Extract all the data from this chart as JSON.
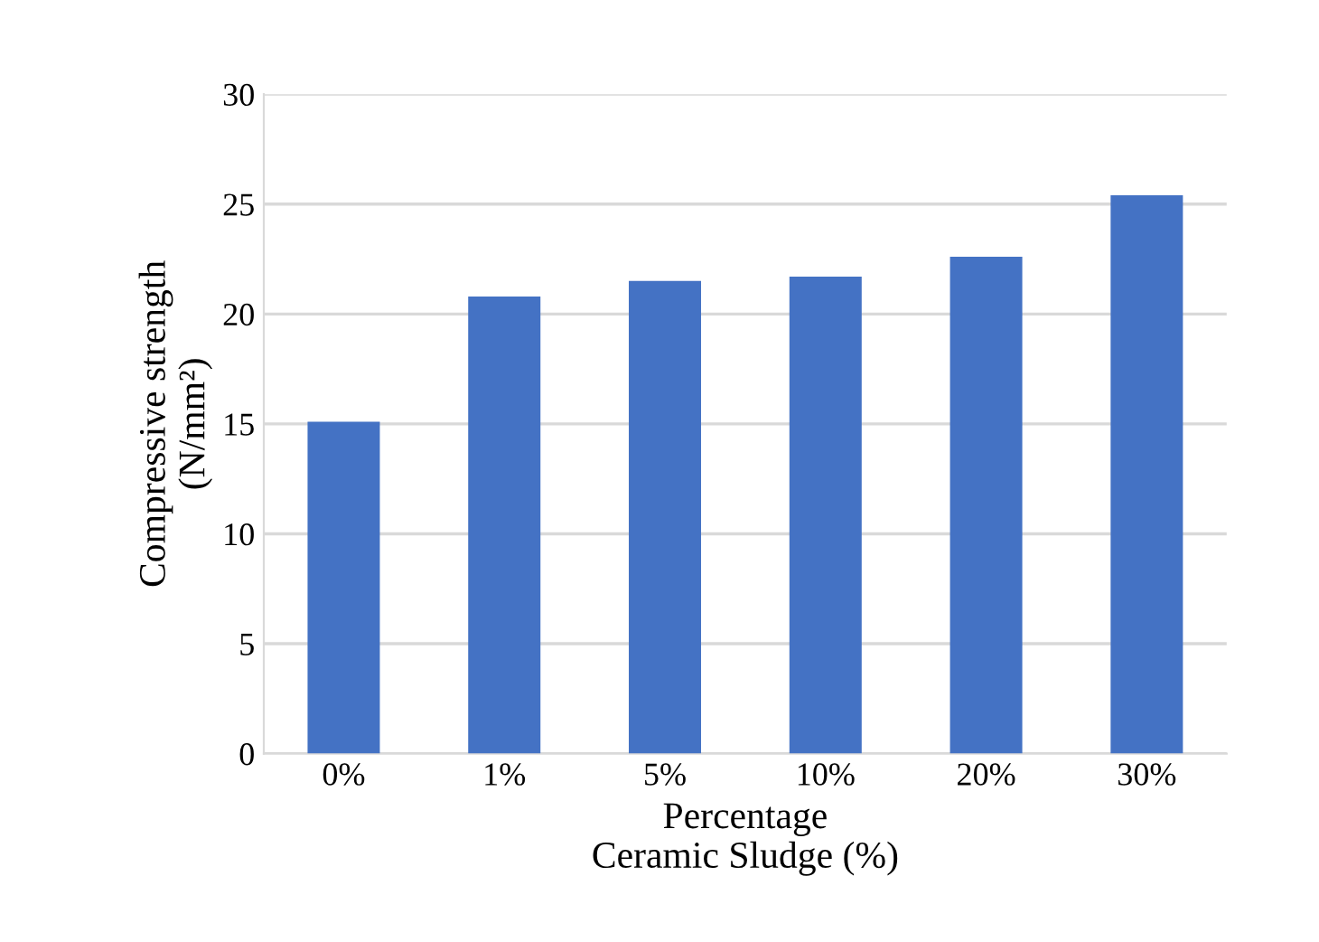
{
  "chart_data": {
    "type": "bar",
    "categories": [
      "0%",
      "1%",
      "5%",
      "10%",
      "20%",
      "30%"
    ],
    "values": [
      15.1,
      20.8,
      21.5,
      21.7,
      22.6,
      25.4
    ],
    "color": "#4472c4",
    "xlabel": "Percentage\nCeramic Sludge (%)",
    "ylabel": "Compressive strength\n(N/mm²)",
    "ylim": [
      0,
      30
    ],
    "yticks": [
      0,
      5,
      10,
      15,
      20,
      25,
      30
    ],
    "grid": "y"
  }
}
